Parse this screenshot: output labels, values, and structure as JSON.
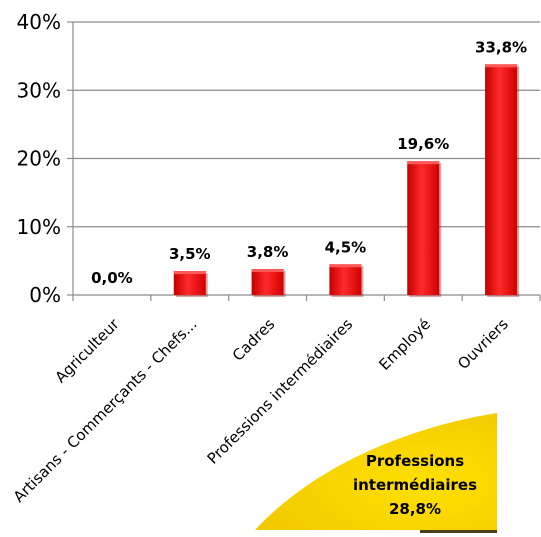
{
  "chart_data": {
    "type": "bar",
    "categories": [
      "Agriculteur",
      "Artisans - Commerçants - Chefs...",
      "Cadres",
      "Professions intermédiaires",
      "Employé",
      "Ouvriers"
    ],
    "values": [
      0.0,
      3.5,
      3.8,
      4.5,
      19.6,
      33.8
    ],
    "data_labels": [
      "0,0%",
      "3,5%",
      "3,8%",
      "4,5%",
      "19,6%",
      "33,8%"
    ],
    "ylim": [
      0,
      40
    ],
    "yticks": [
      0,
      10,
      20,
      30,
      40
    ],
    "ytick_labels": [
      "0%",
      "10%",
      "20%",
      "30%",
      "40%"
    ],
    "title": "",
    "xlabel": "",
    "ylabel": "",
    "grid": true,
    "bar_color": "#ee1111",
    "bar_highlight": "#ff5a5a",
    "bar_shadow": "#9a0000"
  },
  "callout": {
    "lines": [
      "Professions",
      "intermédiaires",
      "28,8%"
    ],
    "fill": "#f5d000",
    "shadow": "#4a4020"
  }
}
